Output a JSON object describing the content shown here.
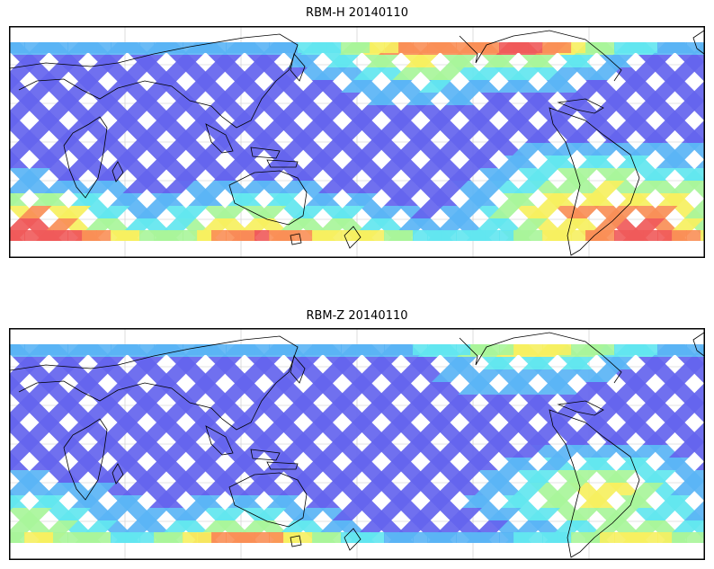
{
  "figure": {
    "panels": [
      {
        "title": "RBM-H 20140110",
        "colormap": "jet",
        "colors": {
          "low": "#6464ee",
          "midlow": "#5ab4f5",
          "mid": "#62e6ef",
          "midhigh": "#a8f59a",
          "high": "#f6f060",
          "hot": "#f98f57",
          "max": "#f05a5a"
        },
        "hotspots": [
          {
            "lon": 0.03,
            "lat": 0.88,
            "level": 0.95
          },
          {
            "lon": 0.1,
            "lat": 0.92,
            "level": 0.6
          },
          {
            "lon": 0.35,
            "lat": 0.9,
            "level": 0.75
          },
          {
            "lon": 0.45,
            "lat": 0.92,
            "level": 0.55
          },
          {
            "lon": 0.6,
            "lat": 0.1,
            "level": 0.7
          },
          {
            "lon": 0.72,
            "lat": 0.06,
            "level": 0.8
          },
          {
            "lon": 0.9,
            "lat": 0.85,
            "level": 0.95
          },
          {
            "lon": 0.82,
            "lat": 0.8,
            "level": 0.85
          },
          {
            "lon": 0.86,
            "lat": 0.7,
            "level": 0.6
          },
          {
            "lon": 0.96,
            "lat": 0.75,
            "level": 0.65
          }
        ]
      },
      {
        "title": "RBM-Z 20140110",
        "colormap": "jet",
        "colors": {
          "low": "#6464ee",
          "midlow": "#5ab4f5",
          "mid": "#62e6ef",
          "midhigh": "#a8f59a",
          "high": "#f6f060",
          "hot": "#f98f57",
          "max": "#f05a5a"
        },
        "hotspots": [
          {
            "lon": 0.03,
            "lat": 0.85,
            "level": 0.5
          },
          {
            "lon": 0.33,
            "lat": 0.95,
            "level": 0.7
          },
          {
            "lon": 0.85,
            "lat": 0.72,
            "level": 0.65
          },
          {
            "lon": 0.75,
            "lat": 0.08,
            "level": 0.45
          },
          {
            "lon": 0.9,
            "lat": 0.88,
            "level": 0.5
          }
        ]
      }
    ]
  }
}
